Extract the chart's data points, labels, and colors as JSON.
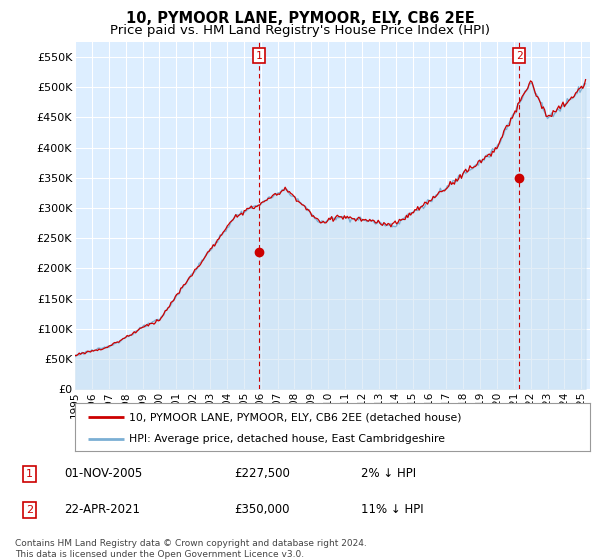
{
  "title": "10, PYMOOR LANE, PYMOOR, ELY, CB6 2EE",
  "subtitle": "Price paid vs. HM Land Registry's House Price Index (HPI)",
  "ylim": [
    0,
    575000
  ],
  "yticks": [
    0,
    50000,
    100000,
    150000,
    200000,
    250000,
    300000,
    350000,
    400000,
    450000,
    500000,
    550000
  ],
  "xlim_start": 1995.0,
  "xlim_end": 2025.5,
  "plot_bg_color": "#ddeeff",
  "grid_color": "#ffffff",
  "hpi_color": "#7bafd4",
  "hpi_fill_color": "#c8dff0",
  "price_color": "#cc0000",
  "marker1_date_x": 2005.917,
  "marker1_price": 227500,
  "marker2_date_x": 2021.31,
  "marker2_price": 350000,
  "legend_label_price": "10, PYMOOR LANE, PYMOOR, ELY, CB6 2EE (detached house)",
  "legend_label_hpi": "HPI: Average price, detached house, East Cambridgeshire",
  "annotation1_num": "1",
  "annotation1_date": "01-NOV-2005",
  "annotation1_price": "£227,500",
  "annotation1_hpi": "2% ↓ HPI",
  "annotation2_num": "2",
  "annotation2_date": "22-APR-2021",
  "annotation2_price": "£350,000",
  "annotation2_hpi": "11% ↓ HPI",
  "footer": "Contains HM Land Registry data © Crown copyright and database right 2024.\nThis data is licensed under the Open Government Licence v3.0.",
  "title_fontsize": 10.5,
  "subtitle_fontsize": 9.5
}
